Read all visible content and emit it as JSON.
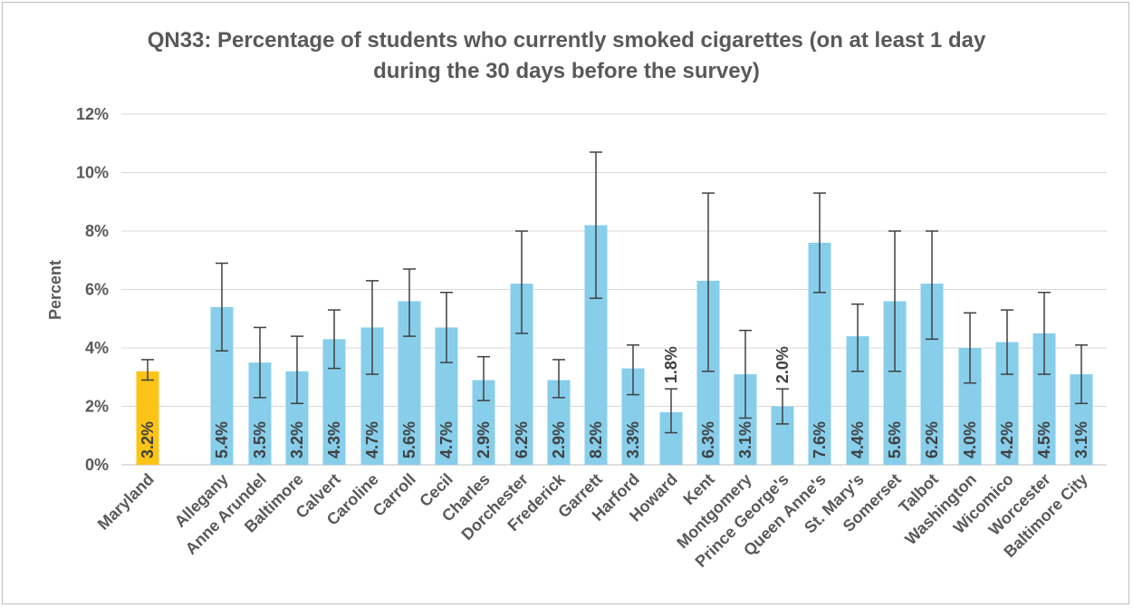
{
  "chart_data": {
    "type": "bar",
    "title_lines": [
      "QN33: Percentage of students who currently smoked cigarettes (on at least 1 day",
      "during the 30 days before the survey)"
    ],
    "xlabel": "",
    "ylabel": "Percent",
    "ylim": [
      0,
      12
    ],
    "yticks": [
      "0%",
      "2%",
      "4%",
      "6%",
      "8%",
      "10%",
      "12%"
    ],
    "grid": true,
    "legend": "none",
    "colors": {
      "state": "#fcc417",
      "county": "#87ceeb",
      "error_bar": "#404040",
      "grid": "#d9d9d9"
    },
    "categories": [
      "Maryland",
      "Allegany",
      "Anne Arundel",
      "Baltimore",
      "Calvert",
      "Caroline",
      "Carroll",
      "Cecil",
      "Charles",
      "Dorchester",
      "Frederick",
      "Garrett",
      "Harford",
      "Howard",
      "Kent",
      "Montgomery",
      "Prince George's",
      "Queen Anne's",
      "St. Mary's",
      "Somerset",
      "Talbot",
      "Washington",
      "Wicomico",
      "Worcester",
      "Baltimore City"
    ],
    "values": [
      3.2,
      5.4,
      3.5,
      3.2,
      4.3,
      4.7,
      5.6,
      4.7,
      2.9,
      6.2,
      2.9,
      8.2,
      3.3,
      1.8,
      6.3,
      3.1,
      2.0,
      7.6,
      4.4,
      5.6,
      6.2,
      4.0,
      4.2,
      4.5,
      3.1
    ],
    "value_labels": [
      "3.2%",
      "5.4%",
      "3.5%",
      "3.2%",
      "4.3%",
      "4.7%",
      "5.6%",
      "4.7%",
      "2.9%",
      "6.2%",
      "2.9%",
      "8.2%",
      "3.3%",
      "1.8%",
      "6.3%",
      "3.1%",
      "2.0%",
      "7.6%",
      "4.4%",
      "5.6%",
      "6.2%",
      "4.0%",
      "4.2%",
      "4.5%",
      "3.1%"
    ],
    "ci_lower": [
      2.9,
      3.9,
      2.3,
      2.1,
      3.3,
      3.1,
      4.4,
      3.5,
      2.2,
      4.5,
      2.3,
      5.7,
      2.4,
      1.1,
      3.2,
      1.6,
      1.4,
      5.9,
      3.2,
      3.2,
      4.3,
      2.8,
      3.1,
      3.1,
      2.1
    ],
    "ci_upper": [
      3.6,
      6.9,
      4.7,
      4.4,
      5.3,
      6.3,
      6.7,
      5.9,
      3.7,
      8.0,
      3.6,
      10.7,
      4.1,
      2.6,
      9.3,
      4.6,
      2.6,
      9.3,
      5.5,
      8.0,
      8.0,
      5.2,
      5.3,
      5.9,
      4.1
    ]
  }
}
